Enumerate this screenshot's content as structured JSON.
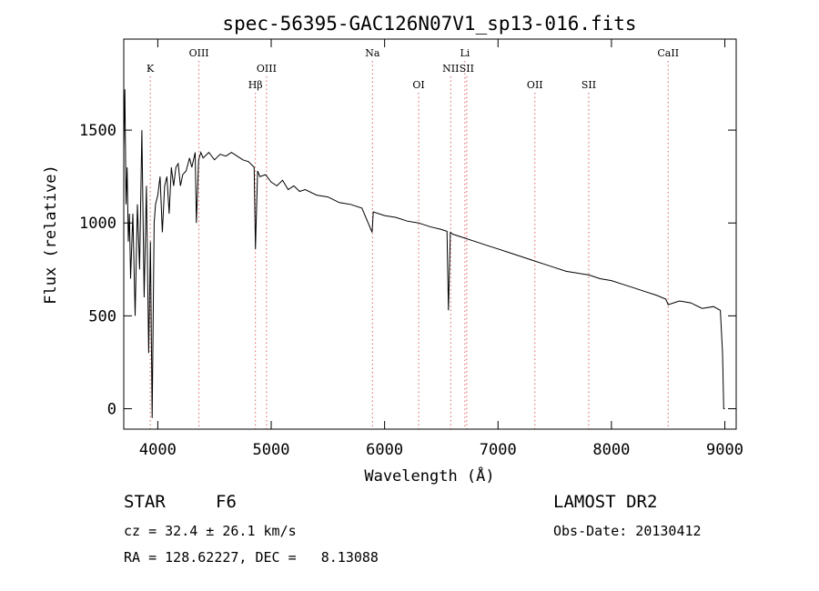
{
  "chart_data": {
    "type": "line",
    "title": "spec-56395-GAC126N07V1_sp13-016.fits",
    "xlabel": "Wavelength (Å)",
    "ylabel": "Flux (relative)",
    "xlim": [
      3700,
      9100
    ],
    "ylim": [
      -110,
      1990
    ],
    "xticks": [
      4000,
      5000,
      6000,
      7000,
      8000,
      9000
    ],
    "yticks": [
      0,
      500,
      1000,
      1500
    ],
    "series": [
      {
        "name": "flux",
        "x": [
          3700,
          3710,
          3720,
          3730,
          3740,
          3750,
          3760,
          3780,
          3800,
          3820,
          3840,
          3860,
          3880,
          3900,
          3920,
          3935,
          3950,
          3968,
          3980,
          4000,
          4020,
          4040,
          4060,
          4080,
          4100,
          4120,
          4140,
          4160,
          4180,
          4200,
          4220,
          4250,
          4280,
          4300,
          4330,
          4340,
          4360,
          4380,
          4400,
          4450,
          4500,
          4550,
          4600,
          4650,
          4700,
          4750,
          4800,
          4850,
          4861,
          4880,
          4900,
          4950,
          5000,
          5050,
          5100,
          5150,
          5200,
          5250,
          5300,
          5400,
          5500,
          5600,
          5700,
          5800,
          5890,
          5900,
          6000,
          6100,
          6200,
          6300,
          6400,
          6500,
          6550,
          6563,
          6580,
          6600,
          6700,
          6800,
          6900,
          7000,
          7100,
          7200,
          7300,
          7400,
          7500,
          7600,
          7700,
          7800,
          7900,
          8000,
          8100,
          8200,
          8300,
          8400,
          8480,
          8500,
          8600,
          8700,
          8800,
          8900,
          8960,
          8980,
          8990,
          9000
        ],
        "values": [
          1400,
          1720,
          1100,
          1300,
          900,
          1050,
          700,
          1050,
          500,
          1100,
          750,
          1500,
          600,
          1200,
          300,
          900,
          -50,
          1000,
          1100,
          1150,
          1250,
          950,
          1200,
          1250,
          1050,
          1300,
          1200,
          1300,
          1320,
          1200,
          1260,
          1280,
          1350,
          1300,
          1380,
          1000,
          1340,
          1380,
          1350,
          1380,
          1340,
          1370,
          1360,
          1380,
          1360,
          1340,
          1330,
          1300,
          860,
          1280,
          1250,
          1260,
          1220,
          1200,
          1230,
          1180,
          1200,
          1170,
          1180,
          1150,
          1140,
          1110,
          1100,
          1080,
          950,
          1060,
          1040,
          1030,
          1010,
          1000,
          980,
          965,
          955,
          530,
          950,
          940,
          920,
          900,
          880,
          860,
          840,
          820,
          800,
          780,
          760,
          740,
          730,
          720,
          700,
          690,
          670,
          650,
          630,
          610,
          590,
          560,
          580,
          570,
          540,
          550,
          530,
          300,
          0,
          0
        ]
      }
    ],
    "line_markers": [
      {
        "label": "K",
        "wavelength": 3934,
        "row": 2
      },
      {
        "label": "OIII",
        "wavelength": 4363,
        "row": 1
      },
      {
        "label": "Hβ",
        "wavelength": 4861,
        "row": 3
      },
      {
        "label": "OIII",
        "wavelength": 4959,
        "row": 2
      },
      {
        "label": "Na",
        "wavelength": 5893,
        "row": 1
      },
      {
        "label": "OI",
        "wavelength": 6300,
        "row": 3
      },
      {
        "label": "NII",
        "wavelength": 6583,
        "row": 2
      },
      {
        "label": "Li",
        "wavelength": 6708,
        "row": 1
      },
      {
        "label": "SII",
        "wavelength": 6724,
        "row": 2
      },
      {
        "label": "OII",
        "wavelength": 7325,
        "row": 3
      },
      {
        "label": "SII",
        "wavelength": 7800,
        "row": 3
      },
      {
        "label": "CaII",
        "wavelength": 8500,
        "row": 1
      }
    ]
  },
  "info": {
    "object_class": "STAR",
    "subclass": "F6",
    "survey": "LAMOST DR2",
    "redshift": "cz = 32.4 ± 26.1 km/s",
    "obs_date": "Obs-Date: 20130412",
    "coordinates": "RA = 128.62227, DEC =   8.13088"
  },
  "colors": {
    "line": "#000000",
    "marker": "#e06060"
  }
}
